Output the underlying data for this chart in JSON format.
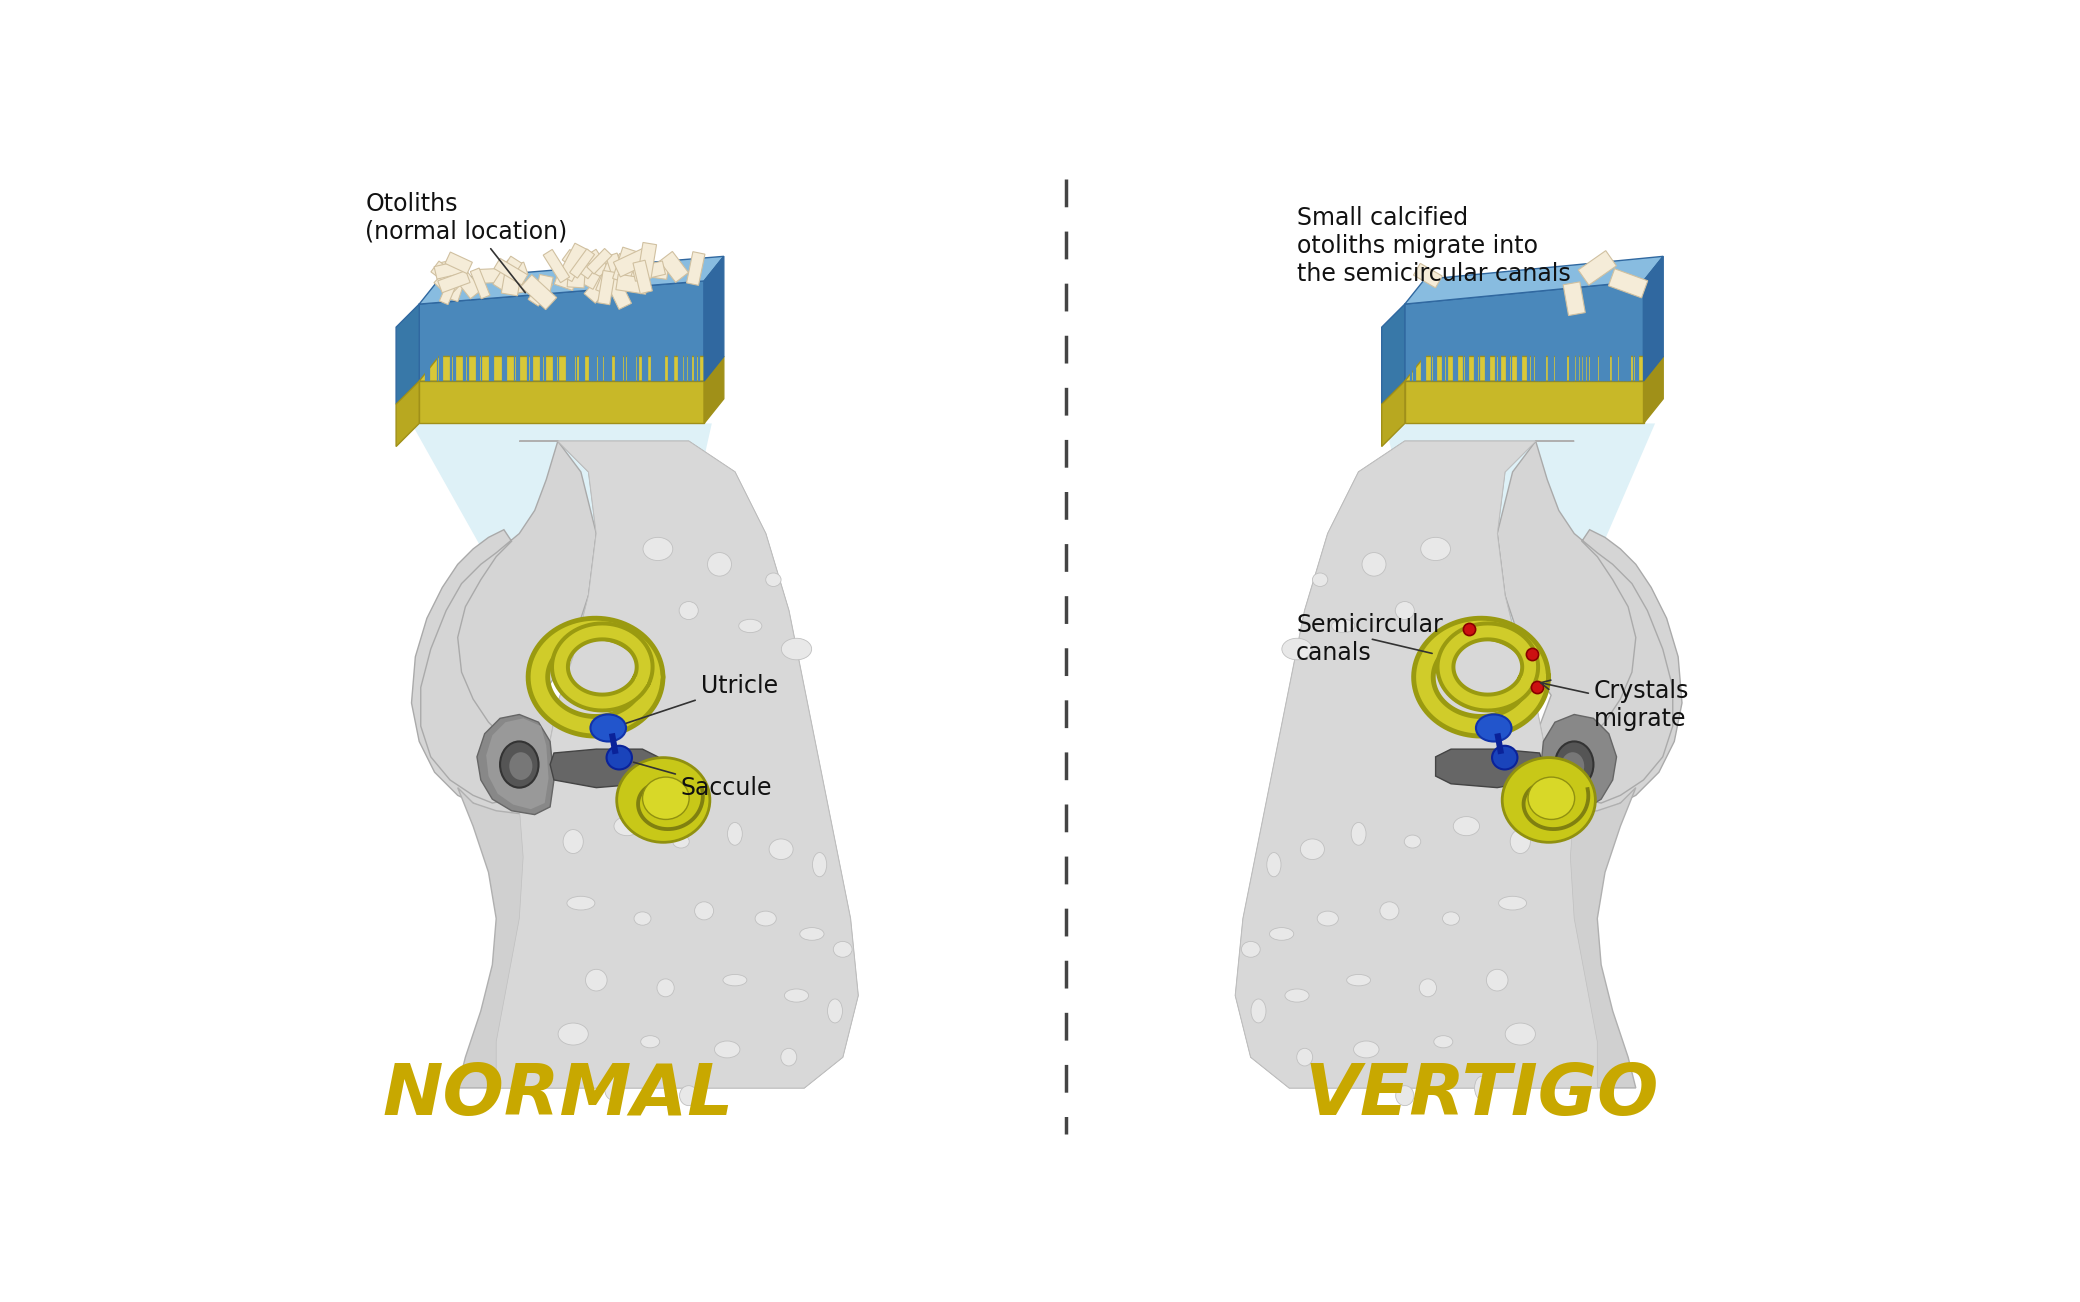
{
  "background_color": "#ffffff",
  "title_normal": "NORMAL",
  "title_vertigo": "VERTIGO",
  "title_color": "#c8a800",
  "title_fontsize": 52,
  "label_normal_otoliths": "Otoliths\n(normal location)",
  "label_utricle": "Utricle",
  "label_saccule": "Saccule",
  "label_vertigo_otoliths": "Small calcified\notoliths migrate into\nthe semicircular canals",
  "label_semicircular": "Semicircular\ncanals",
  "label_crystals": "Crystals\nmigrate",
  "divider_color": "#444444",
  "annotation_color": "#111111",
  "annotation_fontsize": 17,
  "ear_outer_color": "#d8d8d8",
  "ear_inner_color": "#c2c2c2",
  "ear_bone_color": "#b8b8b8",
  "ear_hole_color": "#e5e5e5",
  "ear_canal_dark": "#555555",
  "otolith_cream": "#f0e8d0",
  "otolith_edge": "#d0c0a0",
  "hair_blue": "#4a8ab0",
  "base_gold": "#c8b428",
  "fluid_blue": "#4488bb",
  "fluid_top_blue": "#7ab0d8",
  "zoom_connector_color": "#c8e8f0",
  "cochlea_yellow": "#c8c818",
  "canal_yellow_dark": "#a8a010",
  "canal_yellow_light": "#d8d030",
  "blue_utricle": "#2255cc",
  "blue_saccule": "#1a44bb"
}
